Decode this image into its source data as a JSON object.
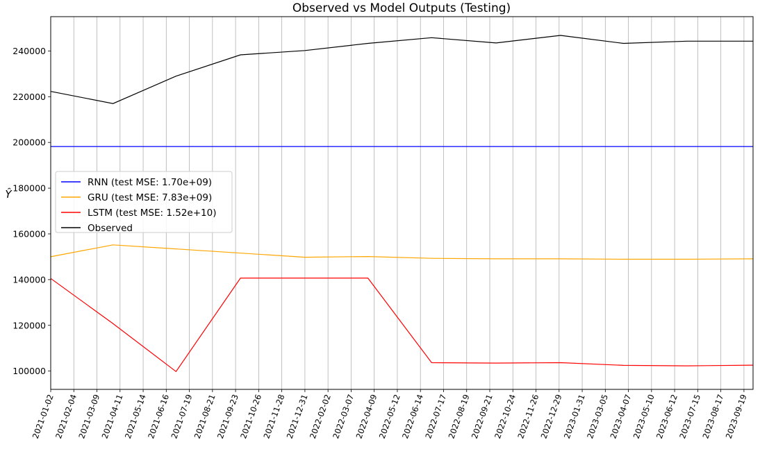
{
  "chart_data": {
    "type": "line",
    "title": "Observed vs Model Outputs (Testing)",
    "ylabel": "Ŷ",
    "xlabel": "",
    "ylim": [
      92000,
      255000
    ],
    "yticks": [
      100000,
      120000,
      140000,
      160000,
      180000,
      200000,
      220000,
      240000
    ],
    "ytick_labels": [
      "100000",
      "120000",
      "140000",
      "160000",
      "180000",
      "200000",
      "220000",
      "240000"
    ],
    "x_range": [
      "2021-01-02",
      "2023-10-02"
    ],
    "xtick_labels": [
      "2021-01-02",
      "2021-02-04",
      "2021-03-09",
      "2021-04-11",
      "2021-05-14",
      "2021-06-16",
      "2021-07-19",
      "2021-08-21",
      "2021-09-23",
      "2021-10-26",
      "2021-11-28",
      "2021-12-31",
      "2022-02-02",
      "2022-03-07",
      "2022-04-09",
      "2022-05-12",
      "2022-06-14",
      "2022-07-17",
      "2022-08-19",
      "2022-09-21",
      "2022-10-24",
      "2022-11-26",
      "2022-12-29",
      "2023-01-31",
      "2023-03-05",
      "2023-04-07",
      "2023-05-10",
      "2023-06-12",
      "2023-07-15",
      "2023-08-17",
      "2023-09-19"
    ],
    "grid": "vertical",
    "legend": "center-left",
    "series": [
      {
        "name": "RNN (test MSE: 1.70e+09)",
        "color": "#0000ff",
        "points": [
          [
            "2021-01-02",
            198200
          ],
          [
            "2023-10-02",
            198200
          ]
        ]
      },
      {
        "name": "GRU (test MSE: 7.83e+09)",
        "color": "#ffa500",
        "points": [
          [
            "2021-01-02",
            150000
          ],
          [
            "2021-04-01",
            155200
          ],
          [
            "2021-09-25",
            151700
          ],
          [
            "2021-12-31",
            149800
          ],
          [
            "2022-03-31",
            150100
          ],
          [
            "2022-06-30",
            149300
          ],
          [
            "2022-09-30",
            149100
          ],
          [
            "2022-12-31",
            149100
          ],
          [
            "2023-03-31",
            148900
          ],
          [
            "2023-06-30",
            148900
          ],
          [
            "2023-10-02",
            149100
          ]
        ]
      },
      {
        "name": "LSTM (test MSE: 1.52e+10)",
        "color": "#ff0000",
        "points": [
          [
            "2021-01-02",
            140500
          ],
          [
            "2021-03-31",
            121000
          ],
          [
            "2021-06-30",
            99800
          ],
          [
            "2021-09-30",
            140700
          ],
          [
            "2021-12-31",
            140700
          ],
          [
            "2022-03-31",
            140700
          ],
          [
            "2022-06-30",
            103700
          ],
          [
            "2022-09-30",
            103500
          ],
          [
            "2022-12-31",
            103700
          ],
          [
            "2023-03-31",
            102500
          ],
          [
            "2023-06-30",
            102300
          ],
          [
            "2023-10-02",
            102600
          ]
        ]
      },
      {
        "name": "Observed",
        "color": "#000000",
        "points": [
          [
            "2021-01-02",
            222300
          ],
          [
            "2021-04-01",
            217000
          ],
          [
            "2021-06-30",
            229000
          ],
          [
            "2021-09-30",
            238300
          ],
          [
            "2021-12-31",
            240200
          ],
          [
            "2022-03-31",
            243300
          ],
          [
            "2022-06-30",
            245800
          ],
          [
            "2022-09-30",
            243500
          ],
          [
            "2022-12-31",
            246800
          ],
          [
            "2023-03-31",
            243300
          ],
          [
            "2023-06-30",
            244300
          ],
          [
            "2023-10-02",
            244300
          ]
        ]
      }
    ]
  }
}
